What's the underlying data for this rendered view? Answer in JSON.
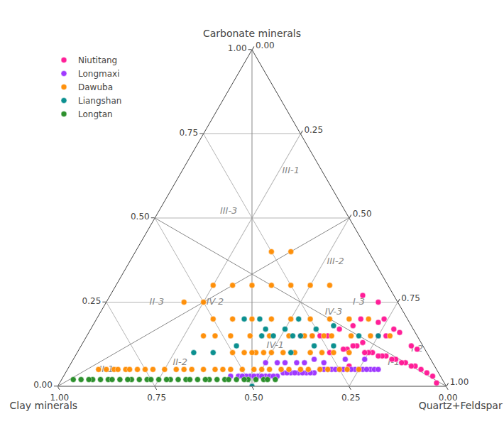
{
  "chart_data": {
    "type": "ternary",
    "component_labels": [
      "Quartz+Feldspar",
      "Clay minerals",
      "Carbonate minerals"
    ],
    "ticks": [
      {
        "value": 0,
        "label": "0.00"
      },
      {
        "value": 0.25,
        "label": "0.25"
      },
      {
        "value": 0.5,
        "label": "0.50"
      },
      {
        "value": 0.75,
        "label": "0.75"
      },
      {
        "value": 1,
        "label": "1.00"
      }
    ],
    "grid": true,
    "legend": "upper left",
    "marker": "circle",
    "zone_lines": [
      [
        [
          1,
          0,
          0
        ],
        [
          0,
          0.5,
          0.5
        ]
      ],
      [
        [
          0,
          1,
          0
        ],
        [
          0.5,
          0,
          0.5
        ]
      ],
      [
        [
          0,
          0,
          1
        ],
        [
          0.5,
          0.5,
          0
        ]
      ]
    ],
    "annotations": [
      {
        "text": "I-1",
        "at": [
          0.83,
          0.1,
          0.07
        ]
      },
      {
        "text": "I-2",
        "at": [
          0.87,
          0.02,
          0.11
        ]
      },
      {
        "text": "I-3",
        "at": [
          0.65,
          0.1,
          0.25
        ]
      },
      {
        "text": "II-1",
        "at": [
          0.1,
          0.85,
          0.05
        ]
      },
      {
        "text": "II-2",
        "at": [
          0.28,
          0.65,
          0.07
        ]
      },
      {
        "text": "II-3",
        "at": [
          0.13,
          0.62,
          0.25
        ]
      },
      {
        "text": "III-1",
        "at": [
          0.28,
          0.08,
          0.64
        ]
      },
      {
        "text": "III-2",
        "at": [
          0.53,
          0.1,
          0.37
        ]
      },
      {
        "text": "III-3",
        "at": [
          0.18,
          0.3,
          0.52
        ]
      },
      {
        "text": "IV-1",
        "at": [
          0.5,
          0.38,
          0.12
        ]
      },
      {
        "text": "IV-2",
        "at": [
          0.28,
          0.47,
          0.25
        ]
      },
      {
        "text": "IV-3",
        "at": [
          0.6,
          0.18,
          0.22
        ]
      }
    ],
    "series": [
      {
        "name": "Niutitang",
        "color": "#FF1493",
        "values": [
          [
            0.97,
            0.02,
            0.01
          ],
          [
            0.95,
            0.02,
            0.03
          ],
          [
            0.93,
            0.03,
            0.04
          ],
          [
            0.91,
            0.04,
            0.05
          ],
          [
            0.89,
            0.05,
            0.06
          ],
          [
            0.88,
            0.06,
            0.06
          ],
          [
            0.86,
            0.07,
            0.07
          ],
          [
            0.85,
            0.08,
            0.07
          ],
          [
            0.83,
            0.09,
            0.08
          ],
          [
            0.82,
            0.1,
            0.08
          ],
          [
            0.8,
            0.11,
            0.09
          ],
          [
            0.79,
            0.12,
            0.09
          ],
          [
            0.78,
            0.13,
            0.09
          ],
          [
            0.76,
            0.14,
            0.1
          ],
          [
            0.75,
            0.15,
            0.1
          ],
          [
            0.74,
            0.16,
            0.1
          ],
          [
            0.73,
            0.08,
            0.19
          ],
          [
            0.71,
            0.17,
            0.12
          ],
          [
            0.7,
            0.18,
            0.12
          ],
          [
            0.69,
            0.2,
            0.11
          ],
          [
            0.68,
            0.21,
            0.11
          ],
          [
            0.78,
            0.05,
            0.17
          ],
          [
            0.8,
            0.04,
            0.16
          ],
          [
            0.85,
            0.03,
            0.12
          ],
          [
            0.87,
            0.02,
            0.11
          ],
          [
            0.72,
            0.22,
            0.06
          ],
          [
            0.65,
            0.25,
            0.1
          ],
          [
            0.67,
            0.15,
            0.18
          ],
          [
            0.75,
            0.1,
            0.15
          ],
          [
            0.77,
            0.08,
            0.15
          ],
          [
            0.6,
            0.25,
            0.15
          ],
          [
            0.62,
            0.23,
            0.15
          ],
          [
            0.64,
            0.19,
            0.17
          ],
          [
            0.55,
            0.3,
            0.15
          ],
          [
            0.58,
            0.27,
            0.15
          ],
          [
            0.7,
            0.05,
            0.25
          ],
          [
            0.74,
            0.06,
            0.2
          ],
          [
            0.65,
            0.08,
            0.27
          ],
          [
            0.68,
            0.12,
            0.2
          ],
          [
            0.72,
            0.15,
            0.13
          ]
        ]
      },
      {
        "name": "Longmaxi",
        "color": "#9B30FF",
        "values": [
          [
            0.52,
            0.45,
            0.03
          ],
          [
            0.55,
            0.42,
            0.03
          ],
          [
            0.58,
            0.38,
            0.04
          ],
          [
            0.6,
            0.36,
            0.04
          ],
          [
            0.62,
            0.34,
            0.04
          ],
          [
            0.64,
            0.32,
            0.04
          ],
          [
            0.65,
            0.3,
            0.05
          ],
          [
            0.67,
            0.28,
            0.05
          ],
          [
            0.68,
            0.27,
            0.05
          ],
          [
            0.7,
            0.25,
            0.05
          ],
          [
            0.72,
            0.23,
            0.05
          ],
          [
            0.74,
            0.21,
            0.05
          ],
          [
            0.75,
            0.2,
            0.05
          ],
          [
            0.76,
            0.19,
            0.05
          ],
          [
            0.78,
            0.17,
            0.05
          ],
          [
            0.5,
            0.47,
            0.03
          ],
          [
            0.53,
            0.44,
            0.03
          ],
          [
            0.56,
            0.4,
            0.04
          ],
          [
            0.59,
            0.37,
            0.04
          ],
          [
            0.61,
            0.35,
            0.04
          ],
          [
            0.63,
            0.33,
            0.04
          ],
          [
            0.66,
            0.29,
            0.05
          ],
          [
            0.69,
            0.26,
            0.05
          ],
          [
            0.71,
            0.24,
            0.05
          ],
          [
            0.73,
            0.22,
            0.05
          ],
          [
            0.48,
            0.49,
            0.03
          ],
          [
            0.54,
            0.43,
            0.03
          ],
          [
            0.57,
            0.39,
            0.04
          ],
          [
            0.77,
            0.18,
            0.05
          ],
          [
            0.79,
            0.16,
            0.05
          ],
          [
            0.45,
            0.52,
            0.03
          ],
          [
            0.47,
            0.5,
            0.03
          ],
          [
            0.51,
            0.46,
            0.03
          ],
          [
            0.8,
            0.15,
            0.05
          ],
          [
            0.43,
            0.54,
            0.03
          ],
          [
            0.46,
            0.51,
            0.03
          ],
          [
            0.49,
            0.48,
            0.03
          ],
          [
            0.62,
            0.3,
            0.08
          ],
          [
            0.65,
            0.28,
            0.07
          ],
          [
            0.55,
            0.38,
            0.07
          ],
          [
            0.58,
            0.35,
            0.07
          ],
          [
            0.7,
            0.22,
            0.08
          ],
          [
            0.75,
            0.17,
            0.08
          ],
          [
            0.5,
            0.43,
            0.07
          ],
          [
            0.53,
            0.4,
            0.07
          ],
          [
            0.6,
            0.33,
            0.07
          ]
        ]
      },
      {
        "name": "Dawuba",
        "color": "#FF8C00",
        "values": [
          [
            0.1,
            0.85,
            0.05
          ],
          [
            0.12,
            0.83,
            0.05
          ],
          [
            0.15,
            0.8,
            0.05
          ],
          [
            0.18,
            0.77,
            0.05
          ],
          [
            0.2,
            0.75,
            0.05
          ],
          [
            0.22,
            0.73,
            0.05
          ],
          [
            0.25,
            0.7,
            0.05
          ],
          [
            0.28,
            0.67,
            0.05
          ],
          [
            0.3,
            0.65,
            0.05
          ],
          [
            0.32,
            0.63,
            0.05
          ],
          [
            0.35,
            0.6,
            0.05
          ],
          [
            0.38,
            0.57,
            0.05
          ],
          [
            0.4,
            0.55,
            0.05
          ],
          [
            0.42,
            0.53,
            0.05
          ],
          [
            0.45,
            0.5,
            0.05
          ],
          [
            0.48,
            0.47,
            0.05
          ],
          [
            0.5,
            0.45,
            0.05
          ],
          [
            0.52,
            0.43,
            0.05
          ],
          [
            0.55,
            0.4,
            0.05
          ],
          [
            0.57,
            0.38,
            0.05
          ],
          [
            0.6,
            0.35,
            0.05
          ],
          [
            0.62,
            0.33,
            0.05
          ],
          [
            0.65,
            0.3,
            0.05
          ],
          [
            0.67,
            0.28,
            0.05
          ],
          [
            0.7,
            0.25,
            0.05
          ],
          [
            0.72,
            0.23,
            0.05
          ],
          [
            0.75,
            0.2,
            0.05
          ],
          [
            0.4,
            0.5,
            0.1
          ],
          [
            0.43,
            0.47,
            0.1
          ],
          [
            0.46,
            0.44,
            0.1
          ],
          [
            0.5,
            0.4,
            0.1
          ],
          [
            0.53,
            0.37,
            0.1
          ],
          [
            0.56,
            0.34,
            0.1
          ],
          [
            0.6,
            0.3,
            0.1
          ],
          [
            0.63,
            0.27,
            0.1
          ],
          [
            0.66,
            0.24,
            0.1
          ],
          [
            0.7,
            0.2,
            0.1
          ],
          [
            0.35,
            0.45,
            0.2
          ],
          [
            0.4,
            0.4,
            0.2
          ],
          [
            0.45,
            0.35,
            0.2
          ],
          [
            0.5,
            0.3,
            0.2
          ],
          [
            0.55,
            0.25,
            0.2
          ],
          [
            0.6,
            0.2,
            0.2
          ],
          [
            0.65,
            0.15,
            0.2
          ],
          [
            0.7,
            0.1,
            0.2
          ],
          [
            0.3,
            0.5,
            0.2
          ],
          [
            0.35,
            0.35,
            0.3
          ],
          [
            0.4,
            0.3,
            0.3
          ],
          [
            0.45,
            0.25,
            0.3
          ],
          [
            0.5,
            0.2,
            0.3
          ],
          [
            0.55,
            0.15,
            0.3
          ],
          [
            0.3,
            0.4,
            0.3
          ],
          [
            0.35,
            0.25,
            0.4
          ],
          [
            0.4,
            0.2,
            0.4
          ],
          [
            0.2,
            0.55,
            0.25
          ],
          [
            0.25,
            0.5,
            0.25
          ],
          [
            0.25,
            0.45,
            0.3
          ],
          [
            0.3,
            0.55,
            0.15
          ],
          [
            0.33,
            0.52,
            0.15
          ],
          [
            0.37,
            0.48,
            0.15
          ],
          [
            0.42,
            0.43,
            0.15
          ],
          [
            0.47,
            0.38,
            0.15
          ],
          [
            0.52,
            0.33,
            0.15
          ],
          [
            0.56,
            0.29,
            0.15
          ],
          [
            0.61,
            0.24,
            0.15
          ],
          [
            0.08,
            0.87,
            0.05
          ],
          [
            0.13,
            0.82,
            0.05
          ],
          [
            0.16,
            0.79,
            0.05
          ],
          [
            0.58,
            0.27,
            0.15
          ],
          [
            0.63,
            0.22,
            0.15
          ],
          [
            0.68,
            0.17,
            0.15
          ],
          [
            0.73,
            0.12,
            0.15
          ],
          [
            0.78,
            0.07,
            0.15
          ],
          [
            0.45,
            0.45,
            0.1
          ],
          [
            0.48,
            0.42,
            0.1
          ]
        ]
      },
      {
        "name": "Liangshan",
        "color": "#008B8B",
        "values": [
          [
            0.5,
            0.5,
            0.0
          ],
          [
            0.38,
            0.42,
            0.2
          ],
          [
            0.42,
            0.38,
            0.2
          ],
          [
            0.52,
            0.28,
            0.2
          ],
          [
            0.45,
            0.4,
            0.15
          ],
          [
            0.55,
            0.35,
            0.1
          ],
          [
            0.35,
            0.55,
            0.1
          ],
          [
            0.4,
            0.48,
            0.12
          ],
          [
            0.6,
            0.28,
            0.12
          ],
          [
            0.65,
            0.23,
            0.12
          ],
          [
            0.48,
            0.37,
            0.15
          ],
          [
            0.53,
            0.32,
            0.15
          ],
          [
            0.58,
            0.25,
            0.17
          ],
          [
            0.3,
            0.6,
            0.1
          ],
          [
            0.55,
            0.3,
            0.15
          ],
          [
            0.7,
            0.15,
            0.15
          ],
          [
            0.75,
            0.1,
            0.15
          ],
          [
            0.62,
            0.2,
            0.18
          ],
          [
            0.45,
            0.38,
            0.17
          ],
          [
            0.5,
            0.33,
            0.17
          ]
        ]
      },
      {
        "name": "Longtan",
        "color": "#228B22",
        "values": [
          [
            0.05,
            0.93,
            0.02
          ],
          [
            0.08,
            0.9,
            0.02
          ],
          [
            0.1,
            0.88,
            0.02
          ],
          [
            0.12,
            0.86,
            0.02
          ],
          [
            0.15,
            0.83,
            0.02
          ],
          [
            0.18,
            0.8,
            0.02
          ],
          [
            0.2,
            0.78,
            0.02
          ],
          [
            0.22,
            0.76,
            0.02
          ],
          [
            0.25,
            0.73,
            0.02
          ],
          [
            0.28,
            0.7,
            0.02
          ],
          [
            0.3,
            0.68,
            0.02
          ],
          [
            0.32,
            0.66,
            0.02
          ],
          [
            0.35,
            0.63,
            0.02
          ],
          [
            0.38,
            0.6,
            0.02
          ],
          [
            0.4,
            0.58,
            0.02
          ],
          [
            0.42,
            0.56,
            0.02
          ],
          [
            0.45,
            0.53,
            0.02
          ],
          [
            0.48,
            0.5,
            0.02
          ],
          [
            0.5,
            0.48,
            0.02
          ],
          [
            0.52,
            0.46,
            0.02
          ],
          [
            0.55,
            0.43,
            0.02
          ],
          [
            0.03,
            0.95,
            0.02
          ],
          [
            0.07,
            0.91,
            0.02
          ],
          [
            0.13,
            0.85,
            0.02
          ],
          [
            0.17,
            0.81,
            0.02
          ],
          [
            0.23,
            0.75,
            0.02
          ],
          [
            0.27,
            0.71,
            0.02
          ],
          [
            0.33,
            0.65,
            0.02
          ],
          [
            0.37,
            0.61,
            0.02
          ],
          [
            0.43,
            0.55,
            0.02
          ],
          [
            0.47,
            0.51,
            0.02
          ],
          [
            0.53,
            0.45,
            0.02
          ]
        ]
      }
    ]
  }
}
